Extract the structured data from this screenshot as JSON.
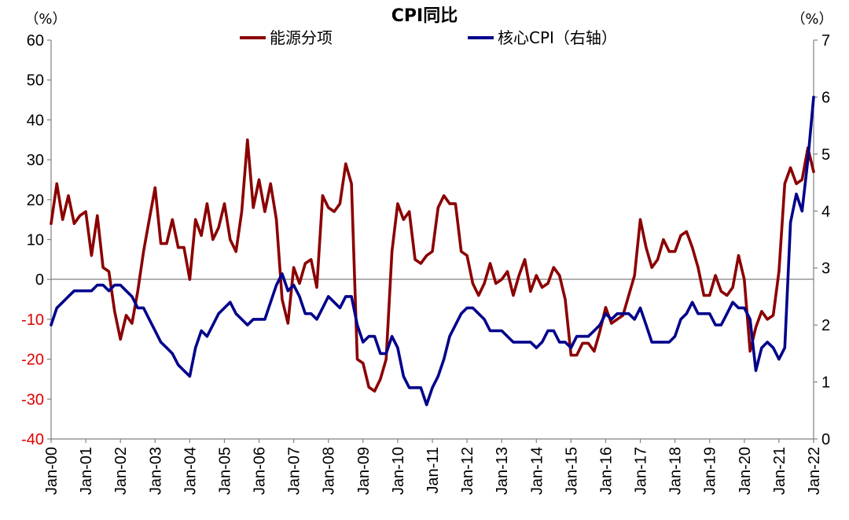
{
  "chart_data": {
    "type": "line",
    "title": "CPI同比",
    "left_axis": {
      "unit": "（%）",
      "ylim": [
        -40,
        60
      ],
      "ticks": [
        60,
        50,
        40,
        30,
        20,
        10,
        0,
        -10,
        -20,
        -30,
        -40
      ]
    },
    "right_axis": {
      "unit": "（%）",
      "ylim": [
        0,
        7
      ],
      "ticks": [
        7,
        6,
        5,
        4,
        3,
        2,
        1,
        0
      ]
    },
    "x_axis": {
      "range": [
        "2000-01",
        "2022-01"
      ],
      "tick_labels": [
        "Jan-00",
        "Jan-01",
        "Jan-02",
        "Jan-03",
        "Jan-04",
        "Jan-05",
        "Jan-06",
        "Jan-07",
        "Jan-08",
        "Jan-09",
        "Jan-10",
        "Jan-11",
        "Jan-12",
        "Jan-13",
        "Jan-14",
        "Jan-15",
        "Jan-16",
        "Jan-17",
        "Jan-18",
        "Jan-19",
        "Jan-20",
        "Jan-21",
        "Jan-22"
      ]
    },
    "legend_position": "top-center",
    "grid": false,
    "series": [
      {
        "name": "能源分项",
        "axis": "left",
        "color": "#8b0000",
        "points": [
          [
            "2000-01",
            14
          ],
          [
            "2000-03",
            24
          ],
          [
            "2000-05",
            15
          ],
          [
            "2000-07",
            21
          ],
          [
            "2000-09",
            14
          ],
          [
            "2000-11",
            16
          ],
          [
            "2001-01",
            17
          ],
          [
            "2001-03",
            6
          ],
          [
            "2001-05",
            16
          ],
          [
            "2001-07",
            3
          ],
          [
            "2001-09",
            2
          ],
          [
            "2001-11",
            -8
          ],
          [
            "2002-01",
            -15
          ],
          [
            "2002-03",
            -9
          ],
          [
            "2002-05",
            -11
          ],
          [
            "2002-07",
            -3
          ],
          [
            "2002-09",
            7
          ],
          [
            "2002-11",
            15
          ],
          [
            "2003-01",
            23
          ],
          [
            "2003-03",
            9
          ],
          [
            "2003-05",
            9
          ],
          [
            "2003-07",
            15
          ],
          [
            "2003-09",
            8
          ],
          [
            "2003-11",
            8
          ],
          [
            "2004-01",
            0
          ],
          [
            "2004-03",
            15
          ],
          [
            "2004-05",
            11
          ],
          [
            "2004-07",
            19
          ],
          [
            "2004-09",
            10
          ],
          [
            "2004-11",
            13
          ],
          [
            "2005-01",
            19
          ],
          [
            "2005-03",
            10
          ],
          [
            "2005-05",
            7
          ],
          [
            "2005-07",
            17
          ],
          [
            "2005-09",
            35
          ],
          [
            "2005-11",
            18
          ],
          [
            "2006-01",
            25
          ],
          [
            "2006-03",
            17
          ],
          [
            "2006-05",
            24
          ],
          [
            "2006-07",
            15
          ],
          [
            "2006-09",
            -5
          ],
          [
            "2006-11",
            -11
          ],
          [
            "2007-01",
            3
          ],
          [
            "2007-03",
            -1
          ],
          [
            "2007-05",
            4
          ],
          [
            "2007-07",
            5
          ],
          [
            "2007-09",
            -2
          ],
          [
            "2007-11",
            21
          ],
          [
            "2008-01",
            18
          ],
          [
            "2008-03",
            17
          ],
          [
            "2008-05",
            19
          ],
          [
            "2008-07",
            29
          ],
          [
            "2008-09",
            24
          ],
          [
            "2008-11",
            -20
          ],
          [
            "2009-01",
            -21
          ],
          [
            "2009-03",
            -27
          ],
          [
            "2009-05",
            -28
          ],
          [
            "2009-07",
            -25
          ],
          [
            "2009-09",
            -20
          ],
          [
            "2009-11",
            7
          ],
          [
            "2010-01",
            19
          ],
          [
            "2010-03",
            15
          ],
          [
            "2010-05",
            17
          ],
          [
            "2010-07",
            5
          ],
          [
            "2010-09",
            4
          ],
          [
            "2010-11",
            6
          ],
          [
            "2011-01",
            7
          ],
          [
            "2011-03",
            18
          ],
          [
            "2011-05",
            21
          ],
          [
            "2011-07",
            19
          ],
          [
            "2011-09",
            19
          ],
          [
            "2011-11",
            7
          ],
          [
            "2012-01",
            6
          ],
          [
            "2012-03",
            -1
          ],
          [
            "2012-05",
            -4
          ],
          [
            "2012-07",
            -1
          ],
          [
            "2012-09",
            4
          ],
          [
            "2012-11",
            -1
          ],
          [
            "2013-01",
            0
          ],
          [
            "2013-03",
            2
          ],
          [
            "2013-05",
            -4
          ],
          [
            "2013-07",
            1
          ],
          [
            "2013-09",
            5
          ],
          [
            "2013-11",
            -3
          ],
          [
            "2014-01",
            1
          ],
          [
            "2014-03",
            -2
          ],
          [
            "2014-05",
            -1
          ],
          [
            "2014-07",
            3
          ],
          [
            "2014-09",
            1
          ],
          [
            "2014-11",
            -5
          ],
          [
            "2015-01",
            -19
          ],
          [
            "2015-03",
            -19
          ],
          [
            "2015-05",
            -16
          ],
          [
            "2015-07",
            -16
          ],
          [
            "2015-09",
            -18
          ],
          [
            "2015-11",
            -13
          ],
          [
            "2016-01",
            -7
          ],
          [
            "2016-03",
            -11
          ],
          [
            "2016-05",
            -10
          ],
          [
            "2016-07",
            -9
          ],
          [
            "2016-09",
            -4
          ],
          [
            "2016-11",
            1
          ],
          [
            "2017-01",
            15
          ],
          [
            "2017-03",
            8
          ],
          [
            "2017-05",
            3
          ],
          [
            "2017-07",
            5
          ],
          [
            "2017-09",
            10
          ],
          [
            "2017-11",
            7
          ],
          [
            "2018-01",
            7
          ],
          [
            "2018-03",
            11
          ],
          [
            "2018-05",
            12
          ],
          [
            "2018-07",
            8
          ],
          [
            "2018-09",
            3
          ],
          [
            "2018-11",
            -4
          ],
          [
            "2019-01",
            -4
          ],
          [
            "2019-03",
            1
          ],
          [
            "2019-05",
            -3
          ],
          [
            "2019-07",
            -4
          ],
          [
            "2019-09",
            -2
          ],
          [
            "2019-11",
            6
          ],
          [
            "2020-01",
            0
          ],
          [
            "2020-03",
            -18
          ],
          [
            "2020-05",
            -12
          ],
          [
            "2020-07",
            -8
          ],
          [
            "2020-09",
            -10
          ],
          [
            "2020-11",
            -9
          ],
          [
            "2021-01",
            2
          ],
          [
            "2021-03",
            24
          ],
          [
            "2021-05",
            28
          ],
          [
            "2021-07",
            24
          ],
          [
            "2021-09",
            25
          ],
          [
            "2021-11",
            33
          ],
          [
            "2022-01",
            27
          ]
        ]
      },
      {
        "name": "核心CPI（右轴）",
        "axis": "right",
        "color": "#00008b",
        "points": [
          [
            "2000-01",
            2.0
          ],
          [
            "2000-03",
            2.3
          ],
          [
            "2000-05",
            2.4
          ],
          [
            "2000-07",
            2.5
          ],
          [
            "2000-09",
            2.6
          ],
          [
            "2000-11",
            2.6
          ],
          [
            "2001-01",
            2.6
          ],
          [
            "2001-03",
            2.6
          ],
          [
            "2001-05",
            2.7
          ],
          [
            "2001-07",
            2.7
          ],
          [
            "2001-09",
            2.6
          ],
          [
            "2001-11",
            2.7
          ],
          [
            "2002-01",
            2.7
          ],
          [
            "2002-03",
            2.6
          ],
          [
            "2002-05",
            2.5
          ],
          [
            "2002-07",
            2.3
          ],
          [
            "2002-09",
            2.3
          ],
          [
            "2002-11",
            2.1
          ],
          [
            "2003-01",
            1.9
          ],
          [
            "2003-03",
            1.7
          ],
          [
            "2003-05",
            1.6
          ],
          [
            "2003-07",
            1.5
          ],
          [
            "2003-09",
            1.3
          ],
          [
            "2003-11",
            1.2
          ],
          [
            "2004-01",
            1.1
          ],
          [
            "2004-03",
            1.6
          ],
          [
            "2004-05",
            1.9
          ],
          [
            "2004-07",
            1.8
          ],
          [
            "2004-09",
            2.0
          ],
          [
            "2004-11",
            2.2
          ],
          [
            "2005-01",
            2.3
          ],
          [
            "2005-03",
            2.4
          ],
          [
            "2005-05",
            2.2
          ],
          [
            "2005-07",
            2.1
          ],
          [
            "2005-09",
            2.0
          ],
          [
            "2005-11",
            2.1
          ],
          [
            "2006-01",
            2.1
          ],
          [
            "2006-03",
            2.1
          ],
          [
            "2006-05",
            2.4
          ],
          [
            "2006-07",
            2.7
          ],
          [
            "2006-09",
            2.9
          ],
          [
            "2006-11",
            2.6
          ],
          [
            "2007-01",
            2.7
          ],
          [
            "2007-03",
            2.5
          ],
          [
            "2007-05",
            2.2
          ],
          [
            "2007-07",
            2.2
          ],
          [
            "2007-09",
            2.1
          ],
          [
            "2007-11",
            2.3
          ],
          [
            "2008-01",
            2.5
          ],
          [
            "2008-03",
            2.4
          ],
          [
            "2008-05",
            2.3
          ],
          [
            "2008-07",
            2.5
          ],
          [
            "2008-09",
            2.5
          ],
          [
            "2008-11",
            2.0
          ],
          [
            "2009-01",
            1.7
          ],
          [
            "2009-03",
            1.8
          ],
          [
            "2009-05",
            1.8
          ],
          [
            "2009-07",
            1.5
          ],
          [
            "2009-09",
            1.5
          ],
          [
            "2009-11",
            1.8
          ],
          [
            "2010-01",
            1.6
          ],
          [
            "2010-03",
            1.1
          ],
          [
            "2010-05",
            0.9
          ],
          [
            "2010-07",
            0.9
          ],
          [
            "2010-09",
            0.9
          ],
          [
            "2010-11",
            0.6
          ],
          [
            "2011-01",
            0.9
          ],
          [
            "2011-03",
            1.1
          ],
          [
            "2011-05",
            1.4
          ],
          [
            "2011-07",
            1.8
          ],
          [
            "2011-09",
            2.0
          ],
          [
            "2011-11",
            2.2
          ],
          [
            "2012-01",
            2.3
          ],
          [
            "2012-03",
            2.3
          ],
          [
            "2012-05",
            2.2
          ],
          [
            "2012-07",
            2.1
          ],
          [
            "2012-09",
            1.9
          ],
          [
            "2012-11",
            1.9
          ],
          [
            "2013-01",
            1.9
          ],
          [
            "2013-03",
            1.8
          ],
          [
            "2013-05",
            1.7
          ],
          [
            "2013-07",
            1.7
          ],
          [
            "2013-09",
            1.7
          ],
          [
            "2013-11",
            1.7
          ],
          [
            "2014-01",
            1.6
          ],
          [
            "2014-03",
            1.7
          ],
          [
            "2014-05",
            1.9
          ],
          [
            "2014-07",
            1.9
          ],
          [
            "2014-09",
            1.7
          ],
          [
            "2014-11",
            1.7
          ],
          [
            "2015-01",
            1.6
          ],
          [
            "2015-03",
            1.8
          ],
          [
            "2015-05",
            1.8
          ],
          [
            "2015-07",
            1.8
          ],
          [
            "2015-09",
            1.9
          ],
          [
            "2015-11",
            2.0
          ],
          [
            "2016-01",
            2.2
          ],
          [
            "2016-03",
            2.1
          ],
          [
            "2016-05",
            2.2
          ],
          [
            "2016-07",
            2.2
          ],
          [
            "2016-09",
            2.2
          ],
          [
            "2016-11",
            2.1
          ],
          [
            "2017-01",
            2.3
          ],
          [
            "2017-03",
            2.0
          ],
          [
            "2017-05",
            1.7
          ],
          [
            "2017-07",
            1.7
          ],
          [
            "2017-09",
            1.7
          ],
          [
            "2017-11",
            1.7
          ],
          [
            "2018-01",
            1.8
          ],
          [
            "2018-03",
            2.1
          ],
          [
            "2018-05",
            2.2
          ],
          [
            "2018-07",
            2.4
          ],
          [
            "2018-09",
            2.2
          ],
          [
            "2018-11",
            2.2
          ],
          [
            "2019-01",
            2.2
          ],
          [
            "2019-03",
            2.0
          ],
          [
            "2019-05",
            2.0
          ],
          [
            "2019-07",
            2.2
          ],
          [
            "2019-09",
            2.4
          ],
          [
            "2019-11",
            2.3
          ],
          [
            "2020-01",
            2.3
          ],
          [
            "2020-03",
            2.1
          ],
          [
            "2020-05",
            1.2
          ],
          [
            "2020-07",
            1.6
          ],
          [
            "2020-09",
            1.7
          ],
          [
            "2020-11",
            1.6
          ],
          [
            "2021-01",
            1.4
          ],
          [
            "2021-03",
            1.6
          ],
          [
            "2021-05",
            3.8
          ],
          [
            "2021-07",
            4.3
          ],
          [
            "2021-09",
            4.0
          ],
          [
            "2021-11",
            4.9
          ],
          [
            "2022-01",
            6.0
          ]
        ]
      }
    ]
  }
}
